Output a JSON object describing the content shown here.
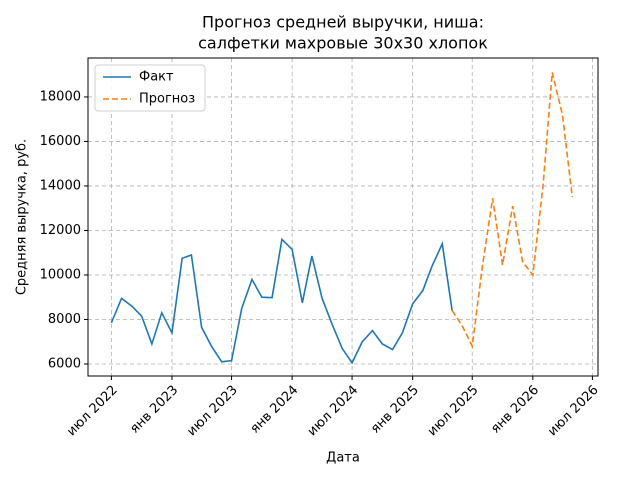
{
  "chart_data": {
    "type": "line",
    "title": [
      "Прогноз средней выручки, ниша:",
      "салфетки махровые 30х30 хлопок"
    ],
    "xlabel": "Дата",
    "ylabel": "Средняя выручка, руб.",
    "series": [
      {
        "name": "Факт",
        "color": "#1f77b4",
        "dash": false,
        "x": [
          "2022-07-01",
          "2022-08-01",
          "2022-09-01",
          "2022-10-01",
          "2022-11-01",
          "2022-12-01",
          "2023-01-01",
          "2023-02-01",
          "2023-03-01",
          "2023-04-01",
          "2023-05-01",
          "2023-06-01",
          "2023-07-01",
          "2023-08-01",
          "2023-09-01",
          "2023-10-01",
          "2023-11-01",
          "2023-12-01",
          "2024-01-01",
          "2024-02-01",
          "2024-03-01",
          "2024-04-01",
          "2024-05-01",
          "2024-06-01",
          "2024-07-01",
          "2024-08-01",
          "2024-09-01",
          "2024-10-01",
          "2024-11-01",
          "2024-12-01",
          "2025-01-01",
          "2025-02-01",
          "2025-03-01",
          "2025-04-01",
          "2025-05-01"
        ],
        "values": [
          7850,
          8950,
          8600,
          8150,
          6900,
          8300,
          7400,
          10750,
          10900,
          7650,
          6800,
          6100,
          6150,
          8500,
          9800,
          9000,
          8980,
          11600,
          11150,
          8750,
          10850,
          8950,
          7800,
          6700,
          6050,
          7000,
          7500,
          6900,
          6650,
          7400,
          8700,
          9300,
          10400,
          11400,
          8400
        ]
      },
      {
        "name": "Прогноз",
        "color": "#ff7f0e",
        "dash": true,
        "x": [
          "2025-05-01",
          "2025-06-01",
          "2025-07-01",
          "2025-08-01",
          "2025-09-01",
          "2025-10-01",
          "2025-11-01",
          "2025-12-01",
          "2026-01-01",
          "2026-02-01",
          "2026-03-01",
          "2026-04-01",
          "2026-05-01"
        ],
        "values": [
          8400,
          7700,
          6800,
          10400,
          13450,
          10450,
          13100,
          10600,
          10000,
          14000,
          19100,
          17200,
          13500
        ]
      }
    ],
    "xlim": [
      "2022-04-21",
      "2026-07-18"
    ],
    "xticks": [
      {
        "value": "2022-07-01",
        "label": "июл 2022"
      },
      {
        "value": "2023-01-01",
        "label": "янв 2023"
      },
      {
        "value": "2023-07-01",
        "label": "июл 2023"
      },
      {
        "value": "2024-01-01",
        "label": "янв 2024"
      },
      {
        "value": "2024-07-01",
        "label": "июл 2024"
      },
      {
        "value": "2025-01-01",
        "label": "янв 2025"
      },
      {
        "value": "2025-07-01",
        "label": "июл 2025"
      },
      {
        "value": "2026-01-01",
        "label": "янв 2026"
      },
      {
        "value": "2026-07-01",
        "label": "июл 2026"
      }
    ],
    "ylim": [
      5460,
      19750
    ],
    "yticks": [
      6000,
      8000,
      10000,
      12000,
      14000,
      16000,
      18000
    ],
    "grid": true,
    "legend": "upper-left"
  }
}
